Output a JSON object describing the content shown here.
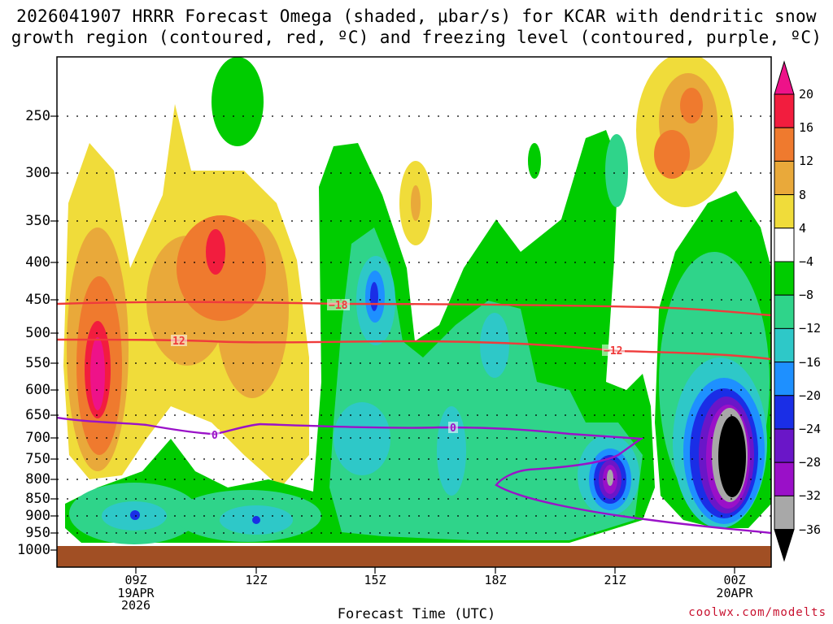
{
  "title": {
    "line1": "2026041907 HRRR Forecast Omega (shaded, μbar/s) for KCAR with dendritic snow",
    "line2": "growth region (contoured, red, ºC) and freezing level (contoured, purple, ºC)"
  },
  "chart_data": {
    "type": "heatmap",
    "title": "2026041907 HRRR Forecast Omega (shaded, μbar/s) for KCAR with dendritic snow growth region (contoured, red, ºC) and freezing level (contoured, purple, ºC)",
    "xlabel": "Forecast Time (UTC)",
    "ylabel": "",
    "y_axis": {
      "scale": "log-pressure",
      "inverted": true,
      "units": "hPa",
      "ticks": [
        "250",
        "300",
        "350",
        "400",
        "450",
        "500",
        "550",
        "600",
        "650",
        "700",
        "750",
        "800",
        "850",
        "900",
        "950",
        "1000"
      ]
    },
    "x_axis": {
      "ticks": [
        {
          "label": "09Z",
          "sub": [
            "19APR",
            "2026"
          ]
        },
        {
          "label": "12Z",
          "sub": []
        },
        {
          "label": "15Z",
          "sub": []
        },
        {
          "label": "18Z",
          "sub": []
        },
        {
          "label": "21Z",
          "sub": []
        },
        {
          "label": "00Z",
          "sub": [
            "20APR"
          ]
        }
      ]
    },
    "colorbar": {
      "levels": [
        "20",
        "16",
        "12",
        "8",
        "4",
        "−4",
        "−8",
        "−12",
        "−16",
        "−20",
        "−24",
        "−28",
        "−32",
        "−36"
      ],
      "colors": {
        "pos16_20": "#f21d3e",
        "pos12_16": "#ef7a2e",
        "pos8_12": "#e9a93a",
        "pos4_8": "#f0dc3a",
        "neutral": "#ffffff",
        "neg4_8": "#00cc00",
        "neg8_12": "#2fd48a",
        "neg12_16": "#2ec8c8",
        "neg16_20": "#1e90ff",
        "neg20_24": "#1a2ee6",
        "neg24_28": "#6a16c8",
        "neg28_32": "#9a10c8",
        "neg32_36": "#a8a8a8",
        "lt_neg36": "#000000",
        "gt20": "#ee1289"
      }
    },
    "contours": {
      "dendritic": [
        {
          "value": "-18",
          "label": "−18",
          "color": "#ef3b3b"
        },
        {
          "value": "-12",
          "label": "−12",
          "color": "#ef3b3b"
        }
      ],
      "freezing": [
        {
          "value": "0",
          "label": "0",
          "color": "#9a12c8"
        }
      ]
    },
    "grid": true,
    "ground_color": "#a14f24"
  },
  "credit": "coolwx.com/modelts"
}
